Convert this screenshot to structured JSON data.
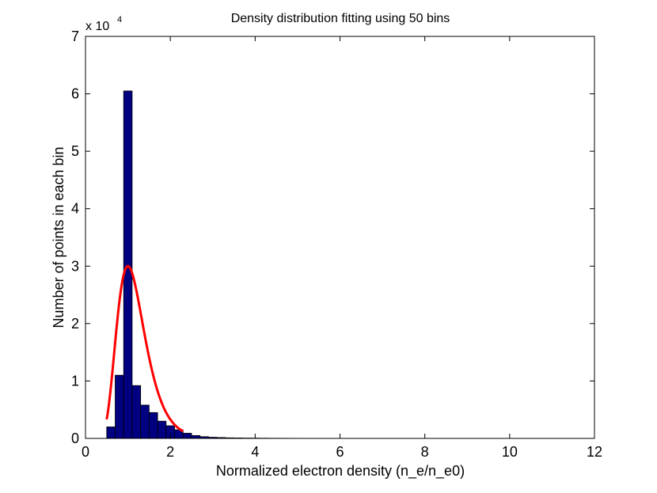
{
  "chart_data": {
    "type": "bar",
    "title": "Density distribution fitting using 50 bins",
    "xlabel": "Normalized electron density (n_e/n_e0)",
    "ylabel": "Number of points in each bin",
    "xlim": [
      0,
      12
    ],
    "ylim": [
      0,
      70000
    ],
    "x_ticks": [
      "0",
      "2",
      "4",
      "6",
      "8",
      "10",
      "12"
    ],
    "y_ticks": [
      "0",
      "1",
      "2",
      "3",
      "4",
      "5",
      "6",
      "7"
    ],
    "y_exponent": {
      "base": "x 10",
      "power": "4"
    },
    "grid": false,
    "legend": "none",
    "bins": {
      "start": 0.5,
      "width": 0.2,
      "counts": [
        2000,
        11000,
        60500,
        9200,
        5800,
        4500,
        3000,
        2200,
        1500,
        900,
        500,
        300,
        200,
        150,
        100,
        80,
        60,
        50,
        40,
        30,
        25,
        20,
        15,
        10,
        10,
        8,
        6,
        5,
        5,
        4,
        3,
        3,
        2,
        2,
        2,
        1,
        1,
        1,
        1,
        1,
        1,
        1,
        1,
        1,
        1,
        1,
        1,
        1,
        1,
        1
      ],
      "fill": "#000080",
      "edge": "#000000"
    },
    "fit_curve": {
      "type": "lognormal",
      "mode": 1.0,
      "peak": 30000,
      "sigma": 0.33,
      "x_range": [
        0.5,
        2.3
      ],
      "color": "#ff0000"
    }
  }
}
